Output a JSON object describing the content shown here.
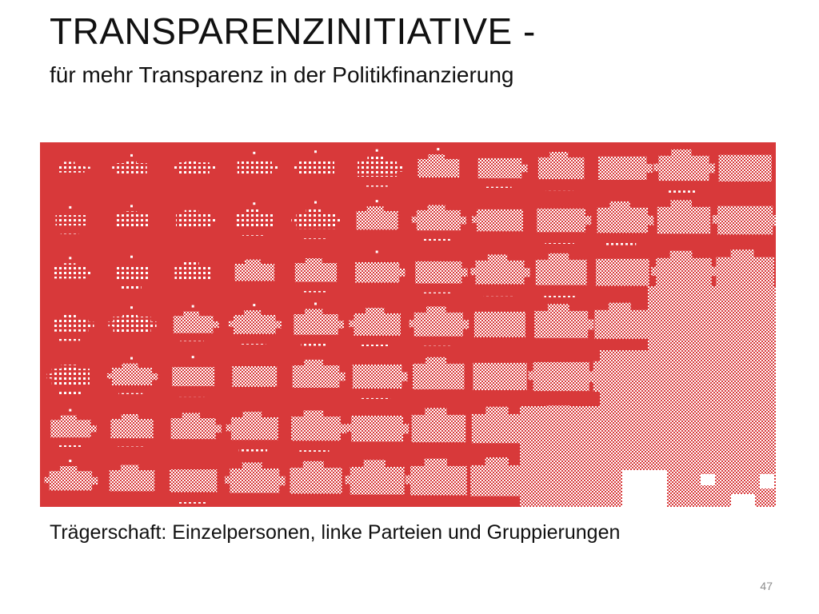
{
  "slide": {
    "title": "TRANSPARENZINITIATIVE -",
    "subtitle": "für mehr Transparenz in der Politikfinanzierung",
    "caption": "Trägerschaft: Einzelpersonen, linke Parteien und Gruppierungen",
    "page_number": "47"
  },
  "pattern": {
    "background_color": "#d8393a",
    "foreground_color": "#ffffff"
  }
}
